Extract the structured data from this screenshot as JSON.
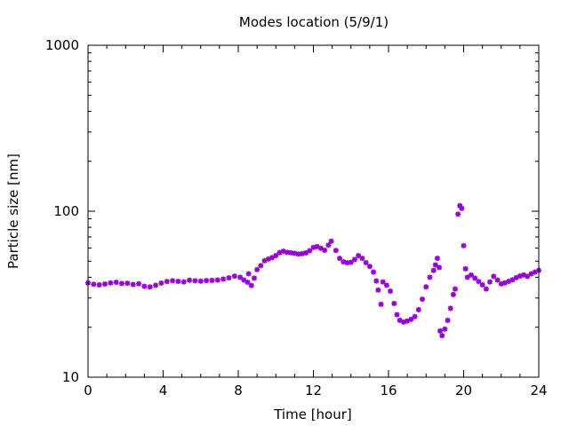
{
  "chart_data": {
    "type": "scatter",
    "title": "Modes location (5/9/1)",
    "xlabel": "Time [hour]",
    "ylabel": "Particle size [nm]",
    "xlim": [
      0,
      24
    ],
    "ylim": [
      10,
      1000
    ],
    "y_scale": "log",
    "x_ticks": [
      0,
      4,
      8,
      12,
      16,
      20,
      24
    ],
    "x_tick_labels": [
      "0",
      "4",
      "8",
      "12",
      "16",
      "20",
      "24"
    ],
    "y_ticks": [
      10,
      100,
      1000
    ],
    "y_tick_labels": [
      "10",
      "100",
      "1000"
    ],
    "grid": false,
    "legend": "none",
    "marker_color": "#9400d3",
    "series": [
      {
        "points": [
          [
            0.0,
            37.0
          ],
          [
            0.3,
            36.3
          ],
          [
            0.6,
            36.0
          ],
          [
            0.9,
            36.4
          ],
          [
            1.2,
            37.0
          ],
          [
            1.5,
            37.3
          ],
          [
            1.8,
            36.7
          ],
          [
            2.1,
            36.8
          ],
          [
            2.4,
            36.2
          ],
          [
            2.7,
            36.6
          ],
          [
            3.0,
            35.3
          ],
          [
            3.3,
            35.0
          ],
          [
            3.6,
            35.8
          ],
          [
            3.9,
            36.9
          ],
          [
            4.2,
            37.7
          ],
          [
            4.5,
            38.1
          ],
          [
            4.8,
            37.8
          ],
          [
            5.1,
            37.5
          ],
          [
            5.4,
            38.4
          ],
          [
            5.7,
            38.1
          ],
          [
            6.0,
            37.9
          ],
          [
            6.3,
            38.2
          ],
          [
            6.6,
            38.3
          ],
          [
            6.9,
            38.5
          ],
          [
            7.2,
            39.0
          ],
          [
            7.5,
            39.7
          ],
          [
            7.8,
            40.6
          ],
          [
            8.1,
            40.0
          ],
          [
            8.3,
            38.5
          ],
          [
            8.5,
            37.3
          ],
          [
            8.55,
            42.0
          ],
          [
            8.7,
            35.7
          ],
          [
            8.85,
            39.5
          ],
          [
            9.0,
            44.5
          ],
          [
            9.2,
            47.0
          ],
          [
            9.4,
            50.3
          ],
          [
            9.6,
            51.5
          ],
          [
            9.8,
            52.5
          ],
          [
            10.0,
            54.0
          ],
          [
            10.2,
            56.3
          ],
          [
            10.4,
            57.4
          ],
          [
            10.6,
            56.5
          ],
          [
            10.8,
            56.2
          ],
          [
            11.0,
            55.8
          ],
          [
            11.2,
            55.2
          ],
          [
            11.4,
            55.5
          ],
          [
            11.6,
            56.1
          ],
          [
            11.8,
            57.8
          ],
          [
            12.0,
            60.5
          ],
          [
            12.2,
            61.2
          ],
          [
            12.4,
            59.8
          ],
          [
            12.6,
            58.2
          ],
          [
            12.8,
            62.5
          ],
          [
            12.95,
            66.0
          ],
          [
            13.2,
            58.0
          ],
          [
            13.4,
            52.0
          ],
          [
            13.6,
            49.6
          ],
          [
            13.8,
            48.9
          ],
          [
            14.0,
            49.2
          ],
          [
            14.2,
            51.2
          ],
          [
            14.4,
            54.0
          ],
          [
            14.6,
            52.0
          ],
          [
            14.8,
            49.0
          ],
          [
            15.0,
            46.5
          ],
          [
            15.2,
            43.0
          ],
          [
            15.35,
            38.0
          ],
          [
            15.45,
            33.5
          ],
          [
            15.6,
            27.5
          ],
          [
            15.7,
            37.5
          ],
          [
            15.9,
            35.8
          ],
          [
            16.1,
            33.0
          ],
          [
            16.3,
            27.8
          ],
          [
            16.45,
            23.8
          ],
          [
            16.6,
            22.0
          ],
          [
            16.8,
            21.5
          ],
          [
            17.0,
            21.8
          ],
          [
            17.2,
            22.3
          ],
          [
            17.4,
            23.2
          ],
          [
            17.6,
            25.5
          ],
          [
            17.8,
            29.5
          ],
          [
            18.0,
            35.0
          ],
          [
            18.2,
            40.0
          ],
          [
            18.4,
            44.0
          ],
          [
            18.5,
            47.5
          ],
          [
            18.6,
            52.0
          ],
          [
            18.7,
            45.8
          ],
          [
            18.75,
            19.0
          ],
          [
            18.85,
            17.8
          ],
          [
            19.0,
            19.5
          ],
          [
            19.15,
            22.0
          ],
          [
            19.3,
            26.0
          ],
          [
            19.45,
            31.5
          ],
          [
            19.55,
            34.0
          ],
          [
            19.7,
            96.0
          ],
          [
            19.8,
            108.0
          ],
          [
            19.9,
            104.0
          ],
          [
            20.0,
            62.0
          ],
          [
            20.1,
            45.0
          ],
          [
            20.2,
            40.0
          ],
          [
            20.4,
            41.3
          ],
          [
            20.6,
            39.5
          ],
          [
            20.8,
            37.7
          ],
          [
            21.0,
            36.0
          ],
          [
            21.2,
            34.0
          ],
          [
            21.4,
            37.5
          ],
          [
            21.6,
            40.5
          ],
          [
            21.8,
            38.5
          ],
          [
            22.0,
            36.5
          ],
          [
            22.2,
            37.0
          ],
          [
            22.4,
            37.8
          ],
          [
            22.6,
            38.6
          ],
          [
            22.8,
            39.8
          ],
          [
            23.0,
            40.7
          ],
          [
            23.2,
            41.3
          ],
          [
            23.4,
            40.5
          ],
          [
            23.6,
            42.0
          ],
          [
            23.8,
            43.0
          ],
          [
            24.0,
            44.0
          ]
        ]
      }
    ]
  }
}
